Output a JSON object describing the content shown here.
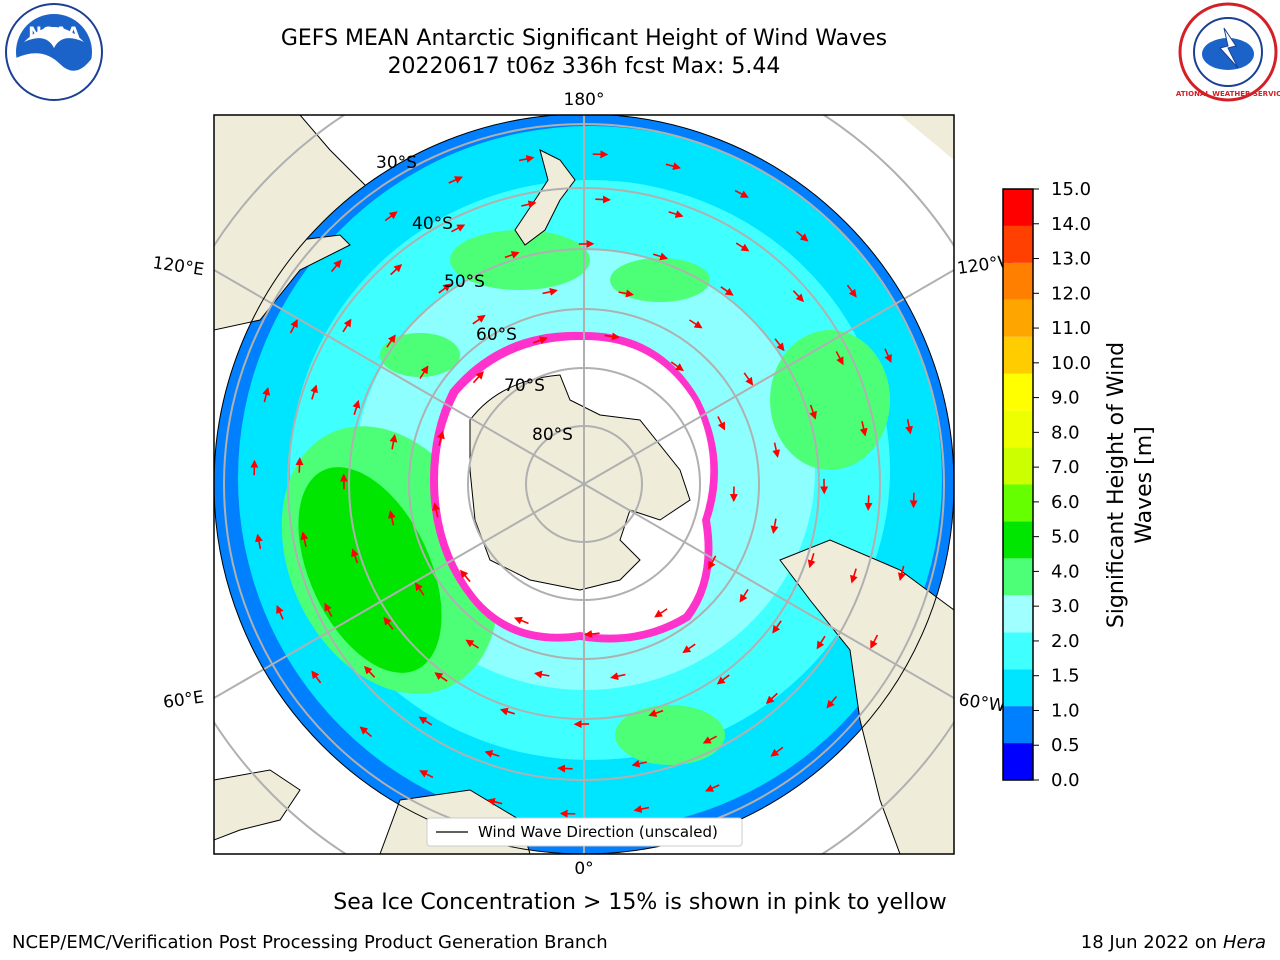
{
  "title": {
    "line1": "GEFS MEAN Antarctic Significant Height of Wind Waves",
    "line2": "20220617 t06z 336h fcst   Max: 5.44"
  },
  "logos": {
    "noaa": {
      "text": "NOAA",
      "icon": "noaa-logo-icon"
    },
    "nws": {
      "text": "NATIONAL WEATHER SERVICE",
      "icon": "nws-logo-icon"
    }
  },
  "map": {
    "projection": "south-polar-stereographic",
    "lon_labels": {
      "top": "180°",
      "bottom": "0°",
      "left_upper": "120°E",
      "left_lower": "60°E",
      "right_upper": "120°W",
      "right_lower": "60°W"
    },
    "lat_labels": [
      "30°S",
      "40°S",
      "50°S",
      "60°S",
      "70°S",
      "80°S"
    ],
    "legend_label": "Wind Wave Direction (unscaled)",
    "ocean_color": "#00e5ff",
    "land_color": "#efedda",
    "arrow_color": "#ff0000"
  },
  "colorbar": {
    "label_line1": "Significant Height of Wind",
    "label_line2": "Waves [m]",
    "ticks": [
      "0.0",
      "0.5",
      "1.0",
      "1.5",
      "2.0",
      "3.0",
      "4.0",
      "5.0",
      "6.0",
      "7.0",
      "8.0",
      "9.0",
      "10.0",
      "11.0",
      "12.0",
      "13.0",
      "14.0",
      "15.0"
    ],
    "colors": [
      "#0000ff",
      "#0080ff",
      "#00e5ff",
      "#40ffff",
      "#a0ffff",
      "#4dff77",
      "#00e600",
      "#66ff00",
      "#ccff00",
      "#eeff00",
      "#ffff00",
      "#ffcc00",
      "#ffa500",
      "#ff8000",
      "#ff4000",
      "#ff0000"
    ]
  },
  "footer": {
    "note": "Sea Ice Concentration > 15% is shown in pink to yellow",
    "credit_left": "NCEP/EMC/Verification Post Processing Product Generation Branch",
    "credit_right_date": "18 Jun 2022 on",
    "credit_right_host": "Hera"
  }
}
